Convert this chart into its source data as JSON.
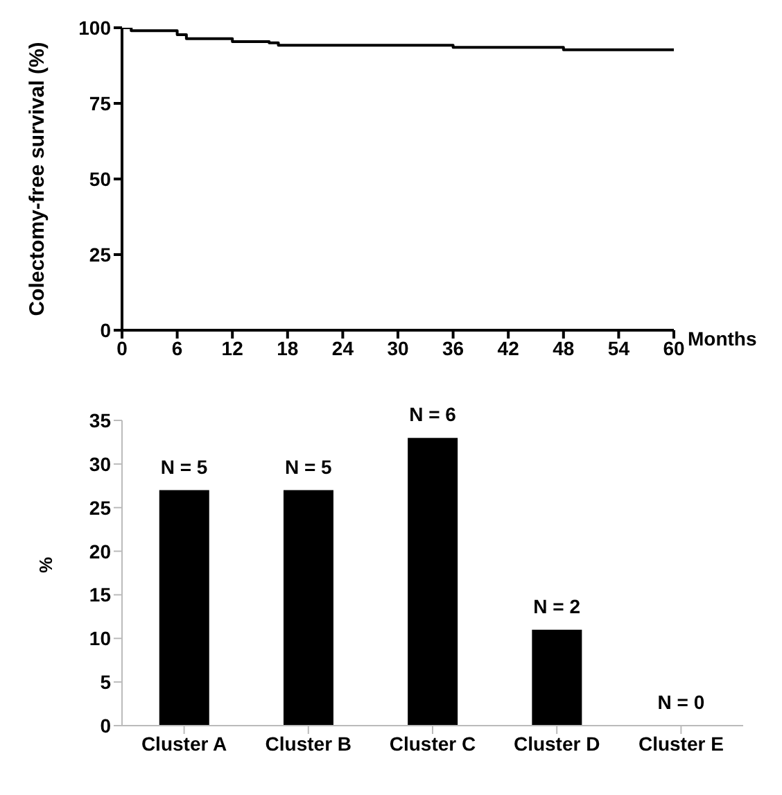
{
  "chart_data": [
    {
      "type": "step",
      "ylabel": "Colectomy-free survival (%)",
      "xlabel": "Months",
      "x": [
        0,
        1,
        6,
        7,
        12,
        16,
        17,
        36,
        48,
        60
      ],
      "values": [
        100,
        99,
        97.7,
        96.4,
        95.4,
        95,
        94.2,
        93.5,
        92.7,
        92.7
      ],
      "color": "#000000",
      "xlim": [
        0,
        60
      ],
      "xticks": [
        0,
        6,
        12,
        18,
        24,
        30,
        36,
        42,
        48,
        54,
        60
      ],
      "ylim": [
        0,
        100
      ],
      "yticks": [
        0,
        25,
        50,
        75,
        100
      ],
      "grid": false,
      "legend": false,
      "marker": "none",
      "line_style": "solid"
    },
    {
      "type": "bar",
      "ylabel": "%",
      "categories": [
        "Cluster A",
        "Cluster B",
        "Cluster C",
        "Cluster D",
        "Cluster E"
      ],
      "values": [
        27,
        27,
        33,
        11,
        0
      ],
      "annotations": [
        {
          "text": "N = 5",
          "x": "Cluster A",
          "y": 27
        },
        {
          "text": "N = 5",
          "x": "Cluster B",
          "y": 27
        },
        {
          "text": "N = 6",
          "x": "Cluster C",
          "y": 33
        },
        {
          "text": "N = 2",
          "x": "Cluster D",
          "y": 11
        },
        {
          "text": "N = 0",
          "x": "Cluster E",
          "y": 0
        }
      ],
      "color": "#000000",
      "ylim": [
        0,
        35
      ],
      "yticks": [
        0,
        5,
        10,
        15,
        20,
        25,
        30,
        35
      ],
      "grid": false,
      "legend": false
    }
  ]
}
